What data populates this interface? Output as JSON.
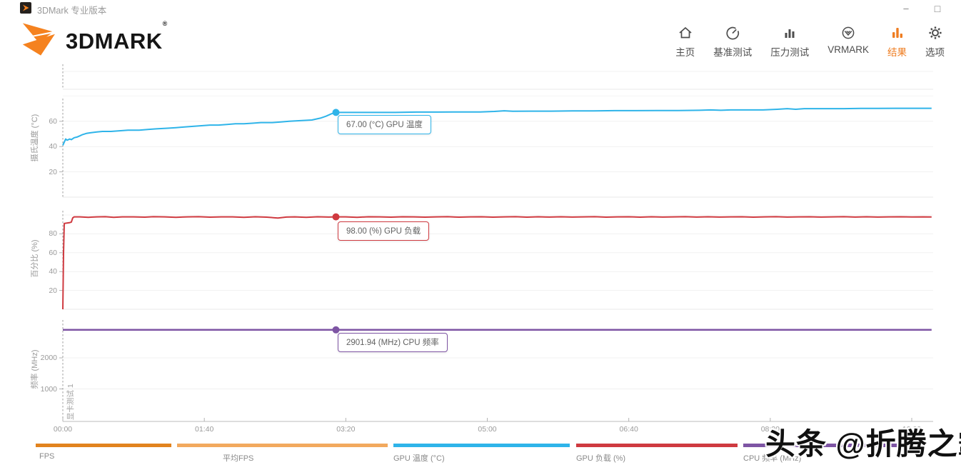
{
  "window": {
    "title": "3DMark 专业版本",
    "minimize_glyph": "–",
    "maximize_glyph": "□"
  },
  "brand": {
    "text": "3DMARK",
    "reg": "®"
  },
  "nav": [
    {
      "id": "home",
      "label": "主页",
      "icon": "home-icon",
      "active": false
    },
    {
      "id": "benchmark",
      "label": "基准测试",
      "icon": "gauge-icon",
      "active": false
    },
    {
      "id": "stress",
      "label": "压力测试",
      "icon": "bars-icon",
      "active": false
    },
    {
      "id": "vrmark",
      "label": "VRMARK",
      "icon": "vrmark-icon",
      "active": false
    },
    {
      "id": "results",
      "label": "结果",
      "icon": "results-icon",
      "active": true
    },
    {
      "id": "options",
      "label": "选项",
      "icon": "gear-icon",
      "active": false
    }
  ],
  "colors": {
    "accent_orange": "#ef7d21",
    "temp_blue": "#2fb4e9",
    "load_red": "#cf3a40",
    "freq_purple": "#7e55a4",
    "fps_orange": "#e2831e",
    "avgfps_orange": "#f2a95e"
  },
  "annotation": {
    "text": "显卡测试 1"
  },
  "watermark": {
    "text": "头条 @折腾之霸"
  },
  "x_axis": {
    "ticks": [
      {
        "t": 0,
        "label": "00:00"
      },
      {
        "t": 100,
        "label": "01:40"
      },
      {
        "t": 200,
        "label": "03:20"
      },
      {
        "t": 300,
        "label": "05:00"
      },
      {
        "t": 400,
        "label": "06:40"
      },
      {
        "t": 500,
        "label": "08:20"
      },
      {
        "t": 600,
        "label": "10:00"
      }
    ]
  },
  "legend": [
    {
      "label": "FPS",
      "color": "#e2831e"
    },
    {
      "label": "平均FPS",
      "color": "#f2a95e"
    },
    {
      "label": "GPU 温度 (°C)",
      "color": "#2fb4e9"
    },
    {
      "label": "GPU 负载 (%)",
      "color": "#cf3a40"
    },
    {
      "label": "CPU 频率 (MHz)",
      "color": "#7e55a4"
    }
  ],
  "chart_data": [
    {
      "type": "line",
      "name": "gpu-temperature",
      "ylabel": "摄氏温度 (°C)",
      "color": "#2fb4e9",
      "y_ticks": [
        20,
        40,
        60
      ],
      "ylim": [
        0,
        78
      ],
      "xlim_seconds": [
        0,
        614
      ],
      "marker": {
        "t": 193,
        "value": 67,
        "label": "67.00 (°C) GPU 温度"
      },
      "series": [
        [
          0,
          41
        ],
        [
          2,
          46
        ],
        [
          3,
          45
        ],
        [
          5,
          46
        ],
        [
          6,
          45.5
        ],
        [
          8,
          47
        ],
        [
          10,
          47.5
        ],
        [
          12,
          48.5
        ],
        [
          14,
          49.5
        ],
        [
          17,
          50.5
        ],
        [
          20,
          51
        ],
        [
          24,
          51.5
        ],
        [
          28,
          52
        ],
        [
          34,
          52
        ],
        [
          40,
          52.5
        ],
        [
          46,
          53
        ],
        [
          54,
          53
        ],
        [
          60,
          53.5
        ],
        [
          66,
          54
        ],
        [
          74,
          54.5
        ],
        [
          80,
          55
        ],
        [
          86,
          55.5
        ],
        [
          92,
          56
        ],
        [
          98,
          56.5
        ],
        [
          104,
          57
        ],
        [
          110,
          57
        ],
        [
          116,
          57.5
        ],
        [
          122,
          58
        ],
        [
          128,
          58
        ],
        [
          134,
          58.5
        ],
        [
          140,
          59
        ],
        [
          148,
          59
        ],
        [
          154,
          59.5
        ],
        [
          160,
          60
        ],
        [
          168,
          60.5
        ],
        [
          176,
          61
        ],
        [
          182,
          62.5
        ],
        [
          186,
          64
        ],
        [
          190,
          66
        ],
        [
          193,
          67
        ],
        [
          200,
          67
        ],
        [
          210,
          67
        ],
        [
          220,
          67
        ],
        [
          235,
          67
        ],
        [
          250,
          67.3
        ],
        [
          265,
          67.3
        ],
        [
          280,
          67.4
        ],
        [
          295,
          67.4
        ],
        [
          305,
          67.8
        ],
        [
          312,
          68.3
        ],
        [
          318,
          67.9
        ],
        [
          330,
          68
        ],
        [
          345,
          68
        ],
        [
          360,
          68.2
        ],
        [
          375,
          68.2
        ],
        [
          390,
          68.4
        ],
        [
          405,
          68.4
        ],
        [
          420,
          68.5
        ],
        [
          435,
          68.5
        ],
        [
          450,
          68.7
        ],
        [
          458,
          69
        ],
        [
          465,
          68.7
        ],
        [
          472,
          69
        ],
        [
          480,
          69
        ],
        [
          495,
          69
        ],
        [
          505,
          69.5
        ],
        [
          512,
          70
        ],
        [
          518,
          69.5
        ],
        [
          524,
          70
        ],
        [
          530,
          70
        ],
        [
          540,
          70
        ],
        [
          552,
          70
        ],
        [
          564,
          70.2
        ],
        [
          576,
          70.2
        ],
        [
          588,
          70.3
        ],
        [
          600,
          70.3
        ],
        [
          614,
          70.3
        ]
      ]
    },
    {
      "type": "line",
      "name": "gpu-load",
      "ylabel": "百分比 (%)",
      "color": "#cf3a40",
      "y_ticks": [
        20,
        40,
        60,
        80
      ],
      "ylim": [
        0,
        104
      ],
      "xlim_seconds": [
        0,
        614
      ],
      "marker": {
        "t": 193,
        "value": 98,
        "label": "98.00 (%) GPU 负载"
      },
      "series": [
        [
          0,
          0
        ],
        [
          0.5,
          60
        ],
        [
          1,
          91
        ],
        [
          3,
          91.5
        ],
        [
          5,
          92
        ],
        [
          6,
          92.5
        ],
        [
          7,
          97
        ],
        [
          8,
          98
        ],
        [
          12,
          98
        ],
        [
          18,
          97.6
        ],
        [
          24,
          98
        ],
        [
          30,
          98.2
        ],
        [
          36,
          97.6
        ],
        [
          42,
          98
        ],
        [
          50,
          98
        ],
        [
          58,
          97.7
        ],
        [
          64,
          98.2
        ],
        [
          72,
          98
        ],
        [
          80,
          97.6
        ],
        [
          88,
          98
        ],
        [
          96,
          98.2
        ],
        [
          104,
          97.7
        ],
        [
          112,
          98
        ],
        [
          120,
          98
        ],
        [
          128,
          97.6
        ],
        [
          136,
          98.1
        ],
        [
          144,
          97.7
        ],
        [
          152,
          96.8
        ],
        [
          158,
          97.8
        ],
        [
          164,
          98
        ],
        [
          172,
          97.6
        ],
        [
          180,
          98.1
        ],
        [
          188,
          97.8
        ],
        [
          193,
          98
        ],
        [
          200,
          98
        ],
        [
          208,
          97.6
        ],
        [
          216,
          98.1
        ],
        [
          224,
          98
        ],
        [
          232,
          97.7
        ],
        [
          240,
          98.1
        ],
        [
          248,
          98
        ],
        [
          256,
          97.7
        ],
        [
          264,
          98
        ],
        [
          272,
          98.2
        ],
        [
          280,
          97.7
        ],
        [
          288,
          98
        ],
        [
          296,
          98.1
        ],
        [
          304,
          97.7
        ],
        [
          312,
          98
        ],
        [
          320,
          98.2
        ],
        [
          328,
          97.7
        ],
        [
          336,
          98.1
        ],
        [
          344,
          97.8
        ],
        [
          352,
          98.1
        ],
        [
          360,
          97.8
        ],
        [
          368,
          98
        ],
        [
          376,
          98.2
        ],
        [
          384,
          97.7
        ],
        [
          392,
          98
        ],
        [
          400,
          98.1
        ],
        [
          408,
          97.7
        ],
        [
          416,
          98.1
        ],
        [
          424,
          97.8
        ],
        [
          432,
          98
        ],
        [
          440,
          98.2
        ],
        [
          448,
          97.8
        ],
        [
          456,
          98.1
        ],
        [
          464,
          97.8
        ],
        [
          472,
          98
        ],
        [
          480,
          98.1
        ],
        [
          488,
          97.7
        ],
        [
          496,
          98
        ],
        [
          504,
          98.2
        ],
        [
          512,
          97.8
        ],
        [
          520,
          98
        ],
        [
          528,
          98.1
        ],
        [
          536,
          97.8
        ],
        [
          544,
          98
        ],
        [
          552,
          98.2
        ],
        [
          560,
          97.8
        ],
        [
          568,
          98.1
        ],
        [
          576,
          97.8
        ],
        [
          584,
          98
        ],
        [
          592,
          98.1
        ],
        [
          600,
          97.9
        ],
        [
          608,
          98
        ],
        [
          614,
          97.9
        ]
      ]
    },
    {
      "type": "line",
      "name": "cpu-frequency",
      "ylabel": "频率 (MHz)",
      "color": "#7e55a4",
      "y_ticks": [
        1000,
        2000
      ],
      "ylim": [
        0,
        3200
      ],
      "xlim_seconds": [
        0,
        614
      ],
      "marker": {
        "t": 193,
        "value": 2901.94,
        "label": "2901.94 (MHz) CPU 频率"
      },
      "series": [
        [
          0,
          2901.94
        ],
        [
          150,
          2901.94
        ],
        [
          300,
          2901.94
        ],
        [
          450,
          2901.94
        ],
        [
          614,
          2901.94
        ]
      ]
    }
  ]
}
